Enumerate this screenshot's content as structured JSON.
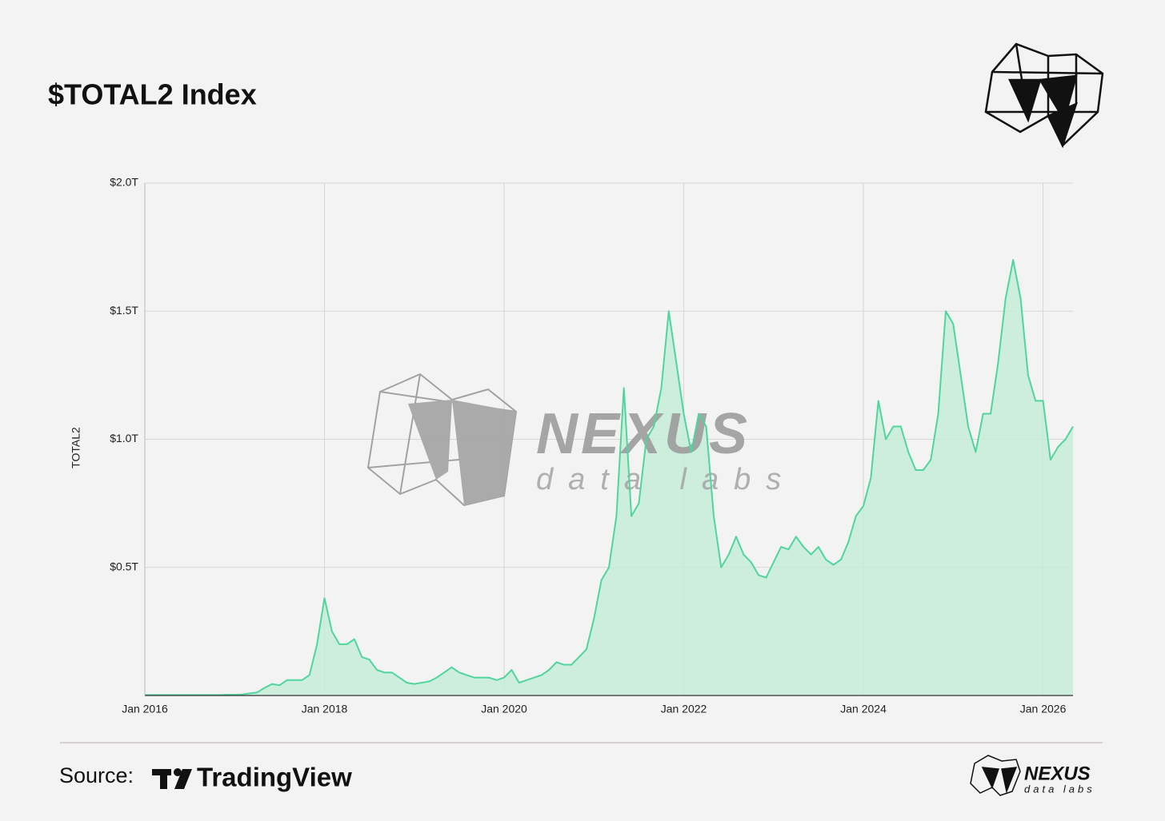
{
  "chart_data": {
    "type": "area",
    "title": "$TOTAL2 Index",
    "y_label": "TOTAL2",
    "x": [
      "2016-01",
      "2016-02",
      "2016-03",
      "2016-04",
      "2016-05",
      "2016-06",
      "2016-07",
      "2016-08",
      "2016-09",
      "2016-10",
      "2016-11",
      "2016-12",
      "2017-01",
      "2017-02",
      "2017-03",
      "2017-04",
      "2017-05",
      "2017-06",
      "2017-07",
      "2017-08",
      "2017-09",
      "2017-10",
      "2017-11",
      "2017-12",
      "2018-01",
      "2018-02",
      "2018-03",
      "2018-04",
      "2018-05",
      "2018-06",
      "2018-07",
      "2018-08",
      "2018-09",
      "2018-10",
      "2018-11",
      "2018-12",
      "2019-01",
      "2019-02",
      "2019-03",
      "2019-04",
      "2019-05",
      "2019-06",
      "2019-07",
      "2019-08",
      "2019-09",
      "2019-10",
      "2019-11",
      "2019-12",
      "2020-01",
      "2020-02",
      "2020-03",
      "2020-04",
      "2020-05",
      "2020-06",
      "2020-07",
      "2020-08",
      "2020-09",
      "2020-10",
      "2020-11",
      "2020-12",
      "2021-01",
      "2021-02",
      "2021-03",
      "2021-04",
      "2021-05",
      "2021-06",
      "2021-07",
      "2021-08",
      "2021-09",
      "2021-10",
      "2021-11",
      "2021-12",
      "2022-01",
      "2022-02",
      "2022-03",
      "2022-04",
      "2022-05",
      "2022-06",
      "2022-07",
      "2022-08",
      "2022-09",
      "2022-10",
      "2022-11",
      "2022-12",
      "2023-01",
      "2023-02",
      "2023-03",
      "2023-04",
      "2023-05",
      "2023-06",
      "2023-07",
      "2023-08",
      "2023-09",
      "2023-10",
      "2023-11",
      "2023-12",
      "2024-01",
      "2024-02",
      "2024-03",
      "2024-04",
      "2024-05",
      "2024-06",
      "2024-07",
      "2024-08",
      "2024-09",
      "2024-10",
      "2024-11",
      "2024-12",
      "2025-01",
      "2025-02",
      "2025-03",
      "2025-04",
      "2025-05",
      "2025-06",
      "2025-07",
      "2025-08",
      "2025-09",
      "2025-10",
      "2025-11",
      "2025-12",
      "2026-01",
      "2026-02",
      "2026-03",
      "2026-04",
      "2026-05"
    ],
    "series": [
      {
        "name": "TOTAL2",
        "color": "#4fd69c",
        "fill": "#c5ecd8",
        "values": [
          0.002,
          0.002,
          0.002,
          0.002,
          0.002,
          0.002,
          0.002,
          0.002,
          0.002,
          0.002,
          0.002,
          0.003,
          0.003,
          0.004,
          0.008,
          0.012,
          0.03,
          0.045,
          0.04,
          0.06,
          0.06,
          0.06,
          0.08,
          0.2,
          0.38,
          0.25,
          0.2,
          0.2,
          0.22,
          0.15,
          0.14,
          0.1,
          0.09,
          0.09,
          0.07,
          0.05,
          0.045,
          0.05,
          0.055,
          0.07,
          0.09,
          0.11,
          0.09,
          0.08,
          0.07,
          0.07,
          0.07,
          0.06,
          0.07,
          0.1,
          0.05,
          0.06,
          0.07,
          0.08,
          0.1,
          0.13,
          0.12,
          0.12,
          0.15,
          0.18,
          0.3,
          0.45,
          0.5,
          0.7,
          1.2,
          0.7,
          0.75,
          1.0,
          1.05,
          1.2,
          1.5,
          1.3,
          1.1,
          0.95,
          1.1,
          1.05,
          0.7,
          0.5,
          0.55,
          0.62,
          0.55,
          0.52,
          0.47,
          0.46,
          0.52,
          0.58,
          0.57,
          0.62,
          0.58,
          0.55,
          0.58,
          0.53,
          0.51,
          0.53,
          0.6,
          0.7,
          0.74,
          0.85,
          1.15,
          1.0,
          1.05,
          1.05,
          0.95,
          0.88,
          0.88,
          0.92,
          1.1,
          1.5,
          1.45,
          1.25,
          1.05,
          0.95,
          1.1,
          1.1,
          1.3,
          1.55,
          1.7,
          1.55,
          1.25,
          1.15,
          1.15,
          0.92,
          0.97,
          1.0,
          1.05
        ]
      }
    ],
    "xlim": [
      "2016-01",
      "2026-05"
    ],
    "xticks": [
      {
        "value": "2016-01",
        "label": "Jan 2016"
      },
      {
        "value": "2018-01",
        "label": "Jan 2018"
      },
      {
        "value": "2020-01",
        "label": "Jan 2020"
      },
      {
        "value": "2022-01",
        "label": "Jan 2022"
      },
      {
        "value": "2024-01",
        "label": "Jan 2024"
      },
      {
        "value": "2026-01",
        "label": "Jan 2026"
      }
    ],
    "ylim": [
      0,
      2
    ],
    "yticks": [
      {
        "value": 0.5,
        "label": "$0.5T"
      },
      {
        "value": 1,
        "label": "$1.0T"
      },
      {
        "value": 1.5,
        "label": "$1.5T"
      },
      {
        "value": 2,
        "label": "$2.0T"
      }
    ],
    "grid": true,
    "source_label": "Source:",
    "source": "TradingView",
    "brand": "NEXUS",
    "brand_sub": "data labs"
  }
}
